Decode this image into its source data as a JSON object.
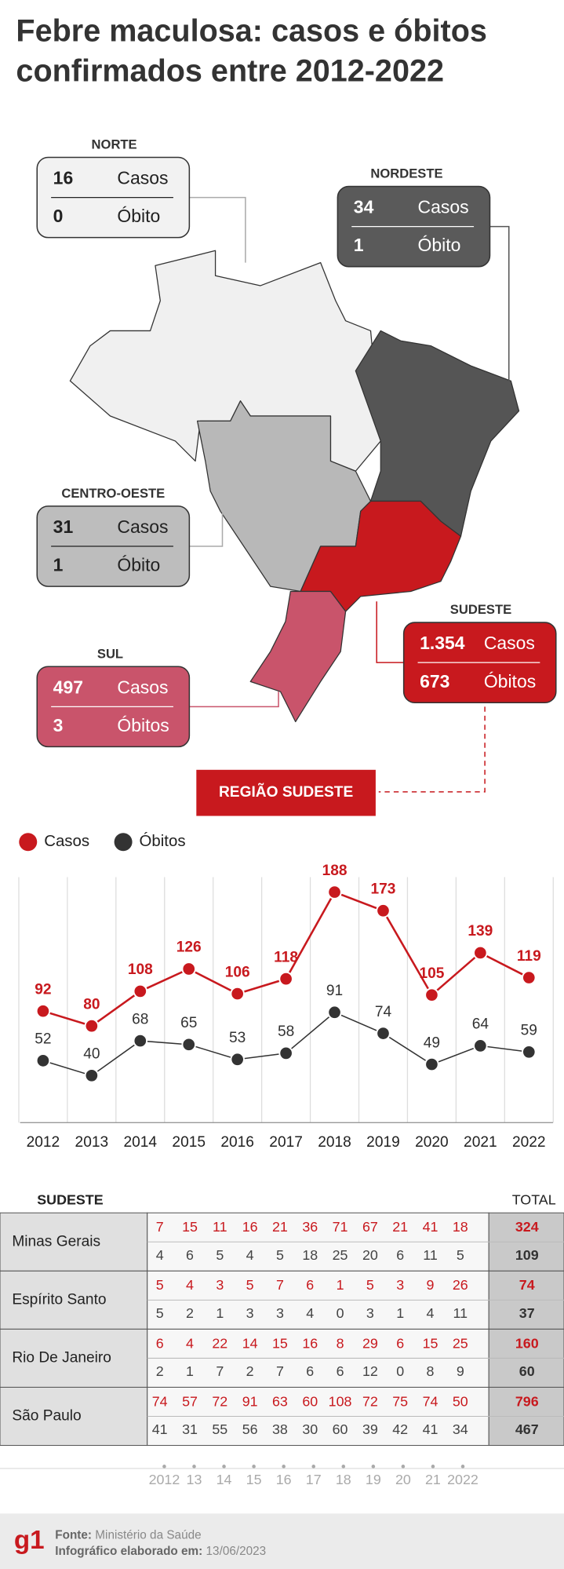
{
  "title_lines": [
    "Febre maculosa: casos e óbitos",
    "confirmados entre 2012-2022"
  ],
  "regions": [
    {
      "name": "NORTE",
      "cases": 16,
      "cases_label": "Casos",
      "deaths": 0,
      "deaths_label": "Óbito"
    },
    {
      "name": "NORDESTE",
      "cases": 34,
      "cases_label": "Casos",
      "deaths": 1,
      "deaths_label": "Óbito"
    },
    {
      "name": "CENTRO-OESTE",
      "cases": 31,
      "cases_label": "Casos",
      "deaths": 1,
      "deaths_label": "Óbito"
    },
    {
      "name": "SUDESTE",
      "cases": {
        "value": 1354,
        "label": "1.354"
      },
      "cases_label": "Casos",
      "deaths": 673,
      "deaths_label": "Óbitos"
    },
    {
      "name": "SUL",
      "cases": 497,
      "cases_label": "Casos",
      "deaths": 3,
      "deaths_label": "Óbitos"
    }
  ],
  "banner": "REGIÃO SUDESTE",
  "chart_data": {
    "type": "line",
    "categories": [
      "2012",
      "2013",
      "2014",
      "2015",
      "2016",
      "2017",
      "2018",
      "2019",
      "2020",
      "2021",
      "2022"
    ],
    "series": [
      {
        "name": "Casos",
        "color": "#c8191e",
        "values": [
          92,
          80,
          108,
          126,
          106,
          118,
          188,
          173,
          105,
          139,
          119
        ]
      },
      {
        "name": "Óbitos",
        "color": "#333333",
        "values": [
          52,
          40,
          68,
          65,
          53,
          58,
          91,
          74,
          49,
          64,
          59
        ]
      }
    ],
    "grid": true
  },
  "table": {
    "header": "SUDESTE",
    "total_header": "TOTAL",
    "rows": [
      {
        "state": "Minas Gerais",
        "cases": [
          7,
          15,
          11,
          16,
          21,
          36,
          71,
          67,
          21,
          41,
          18
        ],
        "cases_total": 324,
        "deaths": [
          4,
          6,
          5,
          4,
          5,
          18,
          25,
          20,
          6,
          11,
          5
        ],
        "deaths_total": 109
      },
      {
        "state": "Espírito Santo",
        "cases": [
          5,
          4,
          3,
          5,
          7,
          6,
          1,
          5,
          3,
          9,
          26
        ],
        "cases_total": 74,
        "deaths": [
          5,
          2,
          1,
          3,
          3,
          4,
          0,
          3,
          1,
          4,
          11
        ],
        "deaths_total": 37
      },
      {
        "state": "Rio De Janeiro",
        "cases": [
          6,
          4,
          22,
          14,
          15,
          16,
          8,
          29,
          6,
          15,
          25
        ],
        "cases_total": 160,
        "deaths": [
          2,
          1,
          7,
          2,
          7,
          6,
          6,
          12,
          0,
          8,
          9
        ],
        "deaths_total": 60
      },
      {
        "state": "São Paulo",
        "cases": [
          74,
          57,
          72,
          91,
          63,
          60,
          108,
          72,
          75,
          74,
          50
        ],
        "cases_total": 796,
        "deaths": [
          41,
          31,
          55,
          56,
          38,
          30,
          60,
          39,
          42,
          41,
          34
        ],
        "deaths_total": 467
      }
    ],
    "year_labels": [
      "2012",
      "13",
      "14",
      "15",
      "16",
      "17",
      "18",
      "19",
      "20",
      "21",
      "2022"
    ]
  },
  "footer": {
    "logo": "g1",
    "source_label": "Fonte:",
    "source": "Ministério da Saúde",
    "date_label": "Infográfico elaborado em:",
    "date": "13/06/2023"
  }
}
